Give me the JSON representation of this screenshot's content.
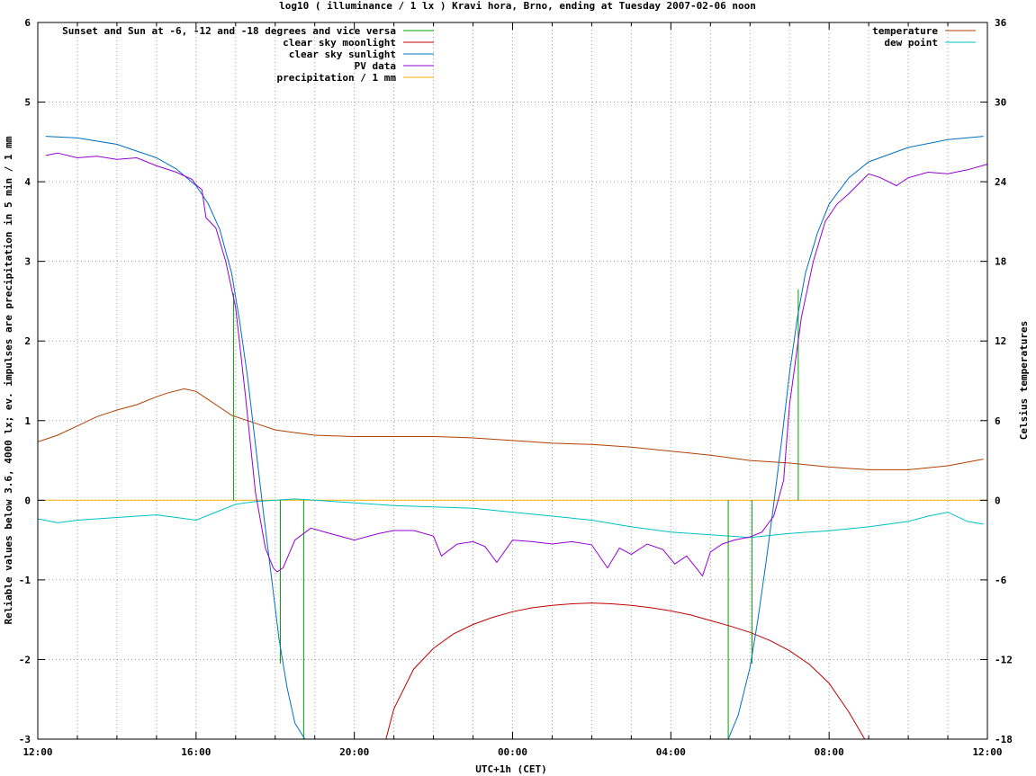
{
  "chart_data": {
    "type": "line",
    "title": "log10 ( illuminance / 1 lx ) Kravi hora, Brno, ending at Tuesday 2007-02-06 noon",
    "xlabel": "UTC+1h (CET)",
    "ylabel": "Reliable values below 3.6, 4000 lx; ev. impulses are precipitation in 5 min / 1 mm",
    "y2label": "Celsius temperatures",
    "xlim": [
      12,
      36
    ],
    "ylim": [
      -3,
      6
    ],
    "y2lim": [
      -18,
      36
    ],
    "x_ticks": [
      {
        "x": 12,
        "label": "12:00"
      },
      {
        "x": 16,
        "label": "16:00"
      },
      {
        "x": 20,
        "label": "20:00"
      },
      {
        "x": 24,
        "label": "00:00"
      },
      {
        "x": 28,
        "label": "04:00"
      },
      {
        "x": 32,
        "label": "08:00"
      },
      {
        "x": 36,
        "label": "12:00"
      }
    ],
    "y_ticks": [
      {
        "y": -3,
        "label": "-3"
      },
      {
        "y": -2,
        "label": "-2"
      },
      {
        "y": -1,
        "label": "-1"
      },
      {
        "y": 0,
        "label": "0"
      },
      {
        "y": 1,
        "label": "1"
      },
      {
        "y": 2,
        "label": "2"
      },
      {
        "y": 3,
        "label": "3"
      },
      {
        "y": 4,
        "label": "4"
      },
      {
        "y": 5,
        "label": "5"
      },
      {
        "y": 6,
        "label": "6"
      }
    ],
    "y2_ticks": [
      {
        "y": -18,
        "label": "-18"
      },
      {
        "y": -12,
        "label": "-12"
      },
      {
        "y": -6,
        "label": "-6"
      },
      {
        "y": 0,
        "label": "0"
      },
      {
        "y": 6,
        "label": "6"
      },
      {
        "y": 12,
        "label": "12"
      },
      {
        "y": 18,
        "label": "18"
      },
      {
        "y": 24,
        "label": "24"
      },
      {
        "y": 30,
        "label": "30"
      },
      {
        "y": 36,
        "label": "36"
      }
    ],
    "grid": true,
    "legend_left": "top-left",
    "legend_right": "top-right",
    "series": [
      {
        "name": "Sunset and Sun at -6, -12 and -18 degrees and vice versa",
        "type": "impulse",
        "axis": "y1",
        "color": "#00a000",
        "impulses": [
          {
            "x": 16.95,
            "y": 2.6
          },
          {
            "x": 18.13,
            "y": -2.05
          },
          {
            "x": 18.72,
            "y": -3.0
          },
          {
            "x": 29.45,
            "y": -3.0
          },
          {
            "x": 30.05,
            "y": -2.05
          },
          {
            "x": 31.22,
            "y": 2.65
          }
        ]
      },
      {
        "name": "clear sky moonlight",
        "type": "line",
        "axis": "y1",
        "color": "#c00000",
        "x": [
          20.8,
          21.0,
          21.5,
          22.0,
          22.5,
          23.0,
          23.5,
          24.0,
          24.5,
          25.0,
          25.5,
          26.0,
          26.5,
          27.0,
          27.5,
          28.0,
          28.5,
          29.0,
          29.5,
          30.0,
          30.5,
          31.0,
          31.5,
          32.0,
          32.5,
          32.9
        ],
        "y": [
          -3.0,
          -2.62,
          -2.12,
          -1.86,
          -1.68,
          -1.56,
          -1.47,
          -1.4,
          -1.35,
          -1.32,
          -1.3,
          -1.29,
          -1.3,
          -1.32,
          -1.35,
          -1.39,
          -1.44,
          -1.51,
          -1.58,
          -1.66,
          -1.76,
          -1.89,
          -2.06,
          -2.3,
          -2.66,
          -3.0
        ]
      },
      {
        "name": "clear sky sunlight",
        "type": "line",
        "axis": "y1",
        "color": "#0070c0",
        "x": [
          12.2,
          13.0,
          14.0,
          15.0,
          15.5,
          16.0,
          16.3,
          16.6,
          16.9,
          17.1,
          17.3,
          17.5,
          17.7,
          17.9,
          18.1,
          18.3,
          18.5,
          18.75,
          29.45,
          29.7,
          30.0,
          30.2,
          30.4,
          30.6,
          30.8,
          31.0,
          31.2,
          31.4,
          31.7,
          32.0,
          32.5,
          33.0,
          34.0,
          35.0,
          35.9
        ],
        "y": [
          4.57,
          4.55,
          4.47,
          4.3,
          4.16,
          3.95,
          3.73,
          3.4,
          2.85,
          2.25,
          1.55,
          0.7,
          -0.15,
          -0.95,
          -1.75,
          -2.35,
          -2.8,
          -3.0,
          -3.0,
          -2.7,
          -2.1,
          -1.5,
          -0.8,
          -0.05,
          0.75,
          1.6,
          2.3,
          2.85,
          3.35,
          3.72,
          4.05,
          4.25,
          4.43,
          4.53,
          4.57
        ]
      },
      {
        "name": "PV data",
        "type": "line",
        "axis": "y1",
        "color": "#9400d3",
        "x": [
          12.2,
          12.5,
          13.0,
          13.5,
          14.0,
          14.5,
          15.0,
          15.5,
          15.9,
          16.0,
          16.15,
          16.25,
          16.5,
          16.75,
          17.0,
          17.25,
          17.5,
          17.75,
          17.95,
          18.05,
          18.2,
          18.5,
          18.9,
          19.4,
          20.0,
          20.6,
          21.0,
          21.5,
          22.0,
          22.2,
          22.6,
          23.0,
          23.3,
          23.6,
          24.0,
          24.5,
          25.0,
          25.5,
          26.0,
          26.4,
          26.7,
          27.0,
          27.4,
          27.8,
          28.1,
          28.4,
          28.8,
          29.0,
          29.3,
          29.6,
          30.0,
          30.3,
          30.6,
          30.85,
          31.0,
          31.3,
          31.6,
          31.9,
          32.2,
          32.5,
          32.8,
          33.0,
          33.3,
          33.7,
          34.0,
          34.5,
          35.0,
          35.5,
          36.0
        ],
        "y": [
          4.33,
          4.36,
          4.3,
          4.32,
          4.28,
          4.3,
          4.2,
          4.12,
          4.03,
          3.96,
          3.9,
          3.55,
          3.42,
          3.0,
          2.42,
          1.3,
          0.1,
          -0.6,
          -0.85,
          -0.9,
          -0.85,
          -0.5,
          -0.35,
          -0.42,
          -0.5,
          -0.42,
          -0.38,
          -0.38,
          -0.45,
          -0.7,
          -0.55,
          -0.52,
          -0.58,
          -0.78,
          -0.5,
          -0.52,
          -0.55,
          -0.52,
          -0.56,
          -0.85,
          -0.6,
          -0.68,
          -0.55,
          -0.62,
          -0.8,
          -0.7,
          -0.95,
          -0.65,
          -0.55,
          -0.5,
          -0.46,
          -0.4,
          -0.2,
          0.25,
          1.2,
          2.3,
          3.0,
          3.5,
          3.72,
          3.85,
          4.0,
          4.1,
          4.05,
          3.95,
          4.05,
          4.12,
          4.1,
          4.15,
          4.22
        ]
      },
      {
        "name": "precipitation / 1 mm",
        "type": "line",
        "axis": "y1",
        "color": "#f0b000",
        "x": [
          12.0,
          36.0
        ],
        "y": [
          0.0,
          0.0
        ]
      },
      {
        "name": "temperature",
        "type": "line",
        "axis": "y2",
        "color": "#b04000",
        "x": [
          12.0,
          12.5,
          13.0,
          13.5,
          14.0,
          14.5,
          15.0,
          15.3,
          15.7,
          16.0,
          16.3,
          16.6,
          16.9,
          17.2,
          17.5,
          18.0,
          18.5,
          19.0,
          20.0,
          21.0,
          22.0,
          23.0,
          24.0,
          25.0,
          26.0,
          27.0,
          28.0,
          29.0,
          30.0,
          31.0,
          32.0,
          33.0,
          34.0,
          35.0,
          35.9
        ],
        "y": [
          4.4,
          4.9,
          5.6,
          6.3,
          6.8,
          7.2,
          7.8,
          8.1,
          8.4,
          8.2,
          7.6,
          7.0,
          6.4,
          6.1,
          5.8,
          5.3,
          5.1,
          4.9,
          4.8,
          4.8,
          4.8,
          4.7,
          4.5,
          4.3,
          4.2,
          4.0,
          3.7,
          3.4,
          3.0,
          2.8,
          2.5,
          2.3,
          2.3,
          2.6,
          3.1
        ]
      },
      {
        "name": "dew point",
        "type": "line",
        "axis": "y2",
        "color": "#00c0c0",
        "x": [
          12.0,
          12.5,
          13.0,
          13.5,
          14.0,
          14.5,
          15.0,
          15.5,
          16.0,
          16.5,
          17.0,
          17.5,
          18.0,
          18.5,
          19.0,
          20.0,
          21.0,
          22.0,
          23.0,
          24.0,
          25.0,
          26.0,
          27.0,
          28.0,
          29.0,
          30.0,
          31.0,
          32.0,
          33.0,
          34.0,
          34.5,
          35.0,
          35.5,
          35.9
        ],
        "y": [
          -1.4,
          -1.7,
          -1.5,
          -1.4,
          -1.3,
          -1.2,
          -1.1,
          -1.3,
          -1.5,
          -0.9,
          -0.3,
          -0.1,
          0.0,
          0.1,
          0.0,
          -0.2,
          -0.4,
          -0.5,
          -0.6,
          -0.9,
          -1.2,
          -1.5,
          -2.0,
          -2.4,
          -2.6,
          -2.8,
          -2.5,
          -2.3,
          -2.0,
          -1.6,
          -1.2,
          -0.9,
          -1.6,
          -1.8
        ]
      }
    ]
  }
}
